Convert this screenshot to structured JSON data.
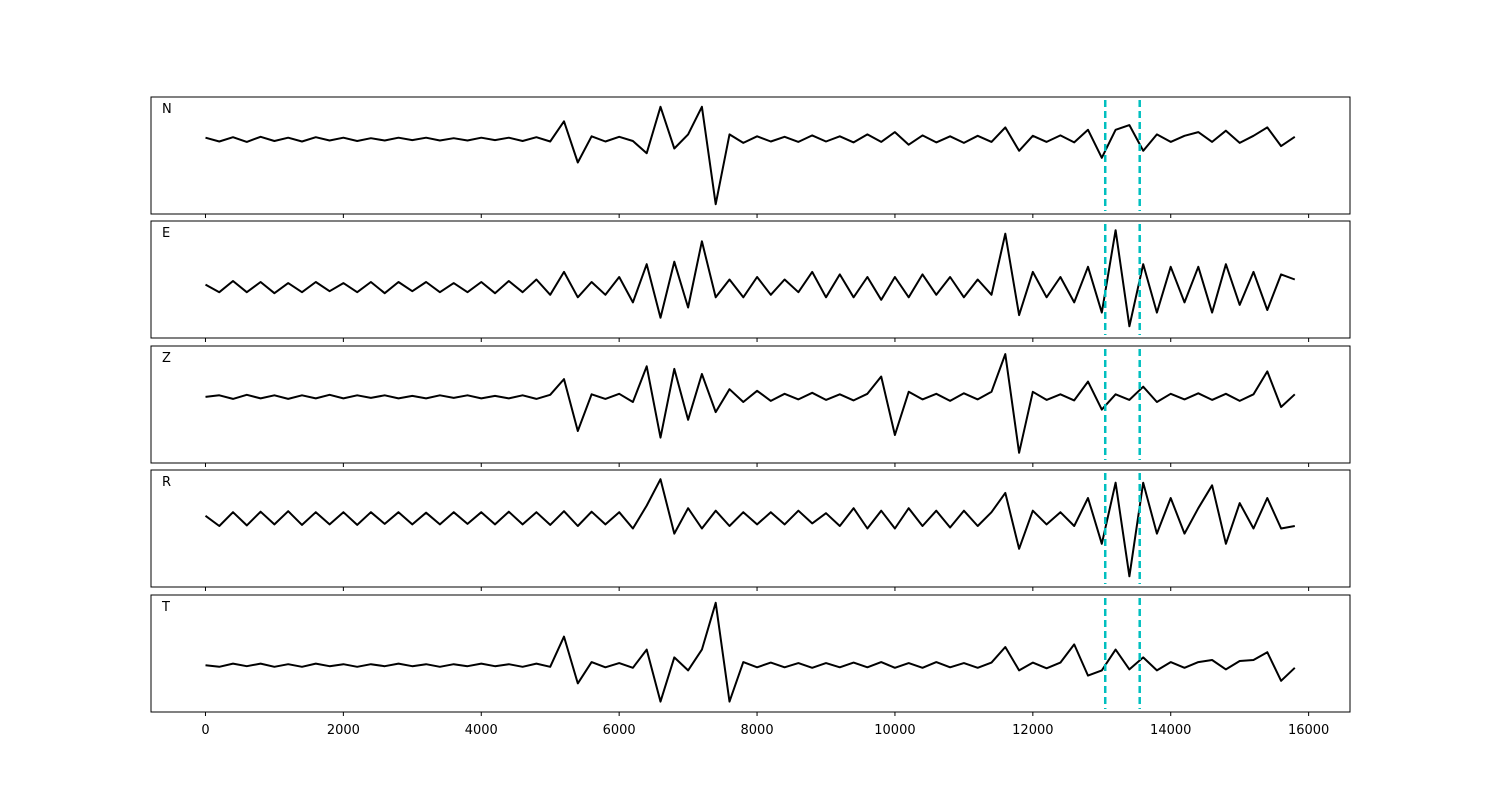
{
  "chart_data": {
    "type": "line",
    "xlim": [
      -790,
      16600
    ],
    "xticks": [
      0,
      2000,
      4000,
      6000,
      8000,
      10000,
      12000,
      14000,
      16000
    ],
    "vlines": [
      13050,
      13550
    ],
    "vline_color": "#00bfbf",
    "x": [
      0,
      200,
      400,
      600,
      800,
      1000,
      1200,
      1400,
      1600,
      1800,
      2000,
      2200,
      2400,
      2600,
      2800,
      3000,
      3200,
      3400,
      3600,
      3800,
      4000,
      4200,
      4400,
      4600,
      4800,
      5000,
      5200,
      5400,
      5600,
      5800,
      6000,
      6200,
      6400,
      6600,
      6800,
      7000,
      7200,
      7400,
      7600,
      7800,
      8000,
      8200,
      8400,
      8600,
      8800,
      9000,
      9200,
      9400,
      9600,
      9800,
      10000,
      10200,
      10400,
      10600,
      10800,
      11000,
      11200,
      11400,
      11600,
      11800,
      12000,
      12200,
      12400,
      12600,
      12800,
      13000,
      13200,
      13400,
      13600,
      13800,
      14000,
      14200,
      14400,
      14600,
      14800,
      15000,
      15200,
      15400,
      15600,
      15800
    ],
    "panels": [
      {
        "label": "N",
        "color": "#000000",
        "ylim": [
          -1.6,
          0.9
        ],
        "values": [
          0.03,
          -0.05,
          0.04,
          -0.06,
          0.05,
          -0.04,
          0.03,
          -0.05,
          0.04,
          -0.03,
          0.03,
          -0.04,
          0.02,
          -0.03,
          0.03,
          -0.02,
          0.03,
          -0.03,
          0.02,
          -0.03,
          0.03,
          -0.02,
          0.03,
          -0.04,
          0.04,
          -0.05,
          0.38,
          -0.5,
          0.06,
          -0.05,
          0.05,
          -0.04,
          -0.3,
          0.69,
          -0.2,
          0.1,
          0.69,
          -1.39,
          0.1,
          -0.08,
          0.06,
          -0.05,
          0.05,
          -0.06,
          0.08,
          -0.05,
          0.06,
          -0.07,
          0.1,
          -0.06,
          0.15,
          -0.12,
          0.08,
          -0.07,
          0.06,
          -0.08,
          0.07,
          -0.06,
          0.25,
          -0.25,
          0.07,
          -0.06,
          0.08,
          -0.07,
          0.2,
          -0.4,
          0.2,
          0.3,
          -0.25,
          0.1,
          -0.06,
          0.07,
          0.15,
          -0.06,
          0.18,
          -0.08,
          0.07,
          0.25,
          -0.15,
          0.05
        ]
      },
      {
        "label": "E",
        "color": "#000000",
        "ylim": [
          -1.0,
          1.3
        ],
        "values": [
          0.05,
          -0.1,
          0.12,
          -0.1,
          0.1,
          -0.12,
          0.08,
          -0.1,
          0.1,
          -0.08,
          0.08,
          -0.1,
          0.1,
          -0.12,
          0.1,
          -0.08,
          0.1,
          -0.1,
          0.08,
          -0.1,
          0.1,
          -0.12,
          0.12,
          -0.1,
          0.15,
          -0.15,
          0.3,
          -0.2,
          0.1,
          -0.15,
          0.2,
          -0.3,
          0.45,
          -0.6,
          0.5,
          -0.4,
          0.9,
          -0.2,
          0.15,
          -0.2,
          0.2,
          -0.15,
          0.15,
          -0.1,
          0.3,
          -0.2,
          0.25,
          -0.2,
          0.2,
          -0.25,
          0.2,
          -0.2,
          0.25,
          -0.15,
          0.2,
          -0.2,
          0.15,
          -0.15,
          1.05,
          -0.55,
          0.3,
          -0.2,
          0.2,
          -0.3,
          0.4,
          -0.5,
          1.12,
          -0.77,
          0.45,
          -0.5,
          0.4,
          -0.3,
          0.4,
          -0.5,
          0.45,
          -0.35,
          0.3,
          -0.45,
          0.25,
          0.15
        ]
      },
      {
        "label": "Z",
        "color": "#000000",
        "ylim": [
          -1.3,
          1.0
        ],
        "values": [
          0.0,
          0.03,
          -0.04,
          0.04,
          -0.03,
          0.03,
          -0.04,
          0.03,
          -0.03,
          0.04,
          -0.03,
          0.03,
          -0.02,
          0.03,
          -0.03,
          0.02,
          -0.03,
          0.03,
          -0.02,
          0.03,
          -0.03,
          0.02,
          -0.03,
          0.03,
          -0.04,
          0.04,
          0.35,
          -0.67,
          0.05,
          -0.04,
          0.06,
          -0.1,
          0.6,
          -0.8,
          0.55,
          -0.45,
          0.45,
          -0.3,
          0.15,
          -0.1,
          0.12,
          -0.08,
          0.06,
          -0.05,
          0.08,
          -0.06,
          0.05,
          -0.07,
          0.06,
          0.4,
          -0.75,
          0.1,
          -0.05,
          0.06,
          -0.08,
          0.07,
          -0.05,
          0.1,
          0.84,
          -1.1,
          0.1,
          -0.06,
          0.05,
          -0.07,
          0.3,
          -0.25,
          0.05,
          -0.06,
          0.2,
          -0.1,
          0.06,
          -0.05,
          0.07,
          -0.06,
          0.06,
          -0.08,
          0.05,
          0.5,
          -0.2,
          0.05
        ]
      },
      {
        "label": "R",
        "color": "#000000",
        "ylim": [
          -1.35,
          0.95
        ],
        "values": [
          0.05,
          -0.15,
          0.12,
          -0.14,
          0.13,
          -0.12,
          0.14,
          -0.13,
          0.12,
          -0.12,
          0.12,
          -0.13,
          0.12,
          -0.11,
          0.12,
          -0.12,
          0.11,
          -0.12,
          0.12,
          -0.11,
          0.12,
          -0.12,
          0.13,
          -0.12,
          0.12,
          -0.13,
          0.14,
          -0.15,
          0.13,
          -0.12,
          0.12,
          -0.2,
          0.25,
          0.77,
          -0.3,
          0.2,
          -0.2,
          0.15,
          -0.15,
          0.12,
          -0.12,
          0.12,
          -0.12,
          0.15,
          -0.1,
          0.1,
          -0.15,
          0.2,
          -0.2,
          0.15,
          -0.2,
          0.2,
          -0.15,
          0.15,
          -0.18,
          0.15,
          -0.15,
          0.12,
          0.5,
          -0.6,
          0.15,
          -0.12,
          0.12,
          -0.15,
          0.4,
          -0.5,
          0.7,
          -1.14,
          0.7,
          -0.3,
          0.4,
          -0.3,
          0.2,
          0.65,
          -0.5,
          0.3,
          -0.2,
          0.4,
          -0.2,
          -0.15
        ]
      },
      {
        "label": "T",
        "color": "#000000",
        "ylim": [
          -0.9,
          1.35
        ],
        "values": [
          0.0,
          -0.03,
          0.03,
          -0.02,
          0.03,
          -0.03,
          0.02,
          -0.03,
          0.03,
          -0.02,
          0.02,
          -0.03,
          0.02,
          -0.02,
          0.03,
          -0.02,
          0.02,
          -0.03,
          0.02,
          -0.02,
          0.03,
          -0.02,
          0.02,
          -0.03,
          0.03,
          -0.03,
          0.55,
          -0.35,
          0.06,
          -0.04,
          0.04,
          -0.05,
          0.3,
          -0.7,
          0.15,
          -0.1,
          0.3,
          1.2,
          -0.7,
          0.06,
          -0.04,
          0.05,
          -0.04,
          0.04,
          -0.05,
          0.04,
          -0.04,
          0.05,
          -0.04,
          0.06,
          -0.05,
          0.04,
          -0.05,
          0.06,
          -0.04,
          0.04,
          -0.05,
          0.05,
          0.35,
          -0.1,
          0.05,
          -0.06,
          0.05,
          0.4,
          -0.2,
          -0.1,
          0.3,
          -0.08,
          0.15,
          -0.1,
          0.06,
          -0.05,
          0.06,
          0.1,
          -0.08,
          0.08,
          0.1,
          0.25,
          -0.3,
          -0.05
        ]
      }
    ]
  }
}
